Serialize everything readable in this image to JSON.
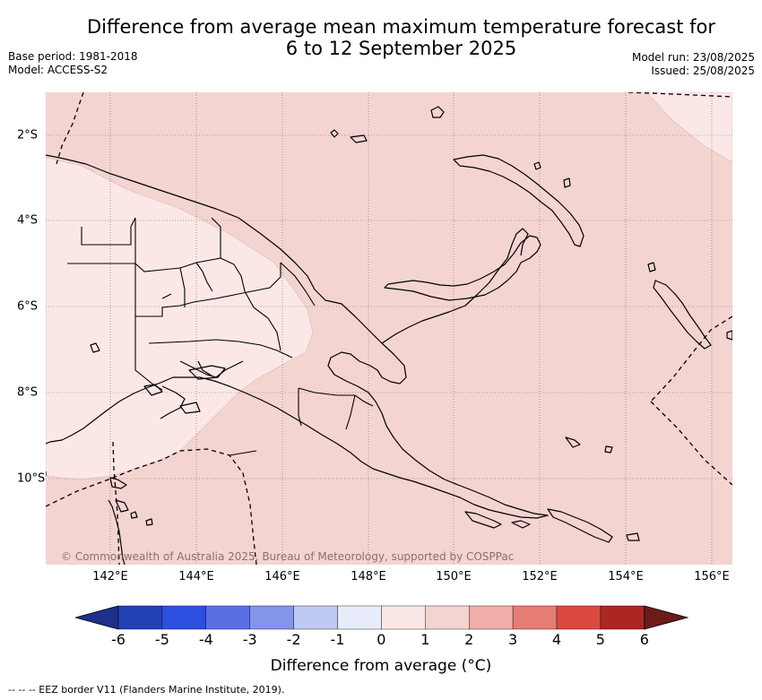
{
  "title": {
    "line1": "Difference from average mean maximum temperature forecast for",
    "line2": "6 to 12 September 2025"
  },
  "meta": {
    "base_period": "Base period: 1981-2018",
    "model": "Model: ACCESS-S2",
    "model_run": "Model run: 23/08/2025",
    "issued": "Issued: 25/08/2025"
  },
  "map": {
    "copyright": "© Commonwealth of Australia 2025, Bureau of Meteorology, supported by COSPPac",
    "lon_labels": [
      "142°E",
      "144°E",
      "146°E",
      "148°E",
      "150°E",
      "152°E",
      "154°E",
      "156°E"
    ],
    "lat_labels": [
      "2°S",
      "4°S",
      "6°S",
      "8°S",
      "10°S"
    ],
    "extent": {
      "lon": [
        140.5,
        156.5
      ],
      "lat": [
        -12,
        -1
      ]
    },
    "fill_colors": {
      "class_0_to_1": "#fbe8e6",
      "class_1_to_2": "#f4d4d1"
    }
  },
  "colorbar": {
    "title": "Difference from average (°C)",
    "ticks": [
      "-6",
      "-5",
      "-4",
      "-3",
      "-2",
      "-1",
      "0",
      "1",
      "2",
      "3",
      "4",
      "5",
      "6"
    ],
    "colors": [
      "#1e2f8c",
      "#2341b4",
      "#2d4fe0",
      "#5a70e2",
      "#8494ea",
      "#c0c8f4",
      "#e7ebfa",
      "#fbe8e6",
      "#f4d4d1",
      "#efaea8",
      "#e67d74",
      "#dc4a3f",
      "#ad2623",
      "#6e1a1a"
    ]
  },
  "footnote": "-- -- -- EEZ border V11 (Flanders Marine Institute, 2019)."
}
